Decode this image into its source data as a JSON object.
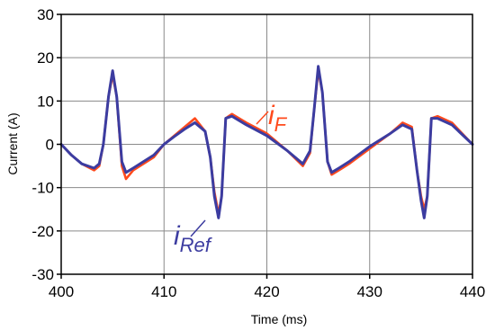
{
  "chart_data": {
    "type": "line",
    "title": "",
    "xlabel": "Time (ms)",
    "ylabel": "Current (A)",
    "xlim": [
      400,
      440
    ],
    "ylim": [
      -30,
      30
    ],
    "xticks": [
      "400",
      "410",
      "420",
      "430",
      "440"
    ],
    "yticks": [
      "30",
      "20",
      "10",
      "0",
      "-10",
      "-20",
      "-30"
    ],
    "grid": true,
    "legend": "none",
    "series": [
      {
        "name": "iF",
        "color": "#ff4a1c",
        "x": [
          400,
          401,
          402,
          403.2,
          403.7,
          404.1,
          404.6,
          405.0,
          405.4,
          405.9,
          406.3,
          407,
          408,
          409,
          410,
          411,
          412,
          413,
          414.0,
          414.5,
          414.9,
          415.3,
          415.6,
          416.0,
          416.6,
          418,
          420,
          422,
          423.5,
          424.2,
          424.6,
          425.0,
          425.4,
          425.9,
          426.3,
          427,
          428,
          430,
          432,
          433.2,
          434.1,
          434.6,
          435.0,
          435.3,
          435.6,
          436.0,
          436.6,
          438,
          440
        ],
        "y": [
          0,
          -2.5,
          -4.5,
          -6,
          -5,
          0,
          11,
          16,
          11,
          -5,
          -8,
          -6,
          -4.5,
          -3,
          0,
          2,
          4,
          6,
          3,
          -3,
          -11,
          -16,
          -12,
          6,
          7,
          5,
          2.5,
          -1.5,
          -5,
          -2,
          8,
          17,
          12,
          -4,
          -7,
          -6,
          -4.5,
          -1,
          2.5,
          5,
          4,
          -6,
          -12,
          -15,
          -12,
          6,
          6.5,
          5,
          0
        ]
      },
      {
        "name": "iRef",
        "color": "#3c3ca0",
        "x": [
          400,
          401,
          402,
          403.2,
          403.7,
          404.1,
          404.6,
          405.0,
          405.4,
          405.9,
          406.3,
          407,
          408,
          409,
          410,
          411,
          412,
          413,
          414.0,
          414.5,
          414.9,
          415.3,
          415.6,
          416.0,
          416.6,
          418,
          420,
          422,
          423.5,
          424.2,
          424.6,
          425.0,
          425.4,
          425.9,
          426.3,
          427,
          428,
          430,
          432,
          433.2,
          434.1,
          434.6,
          435.0,
          435.3,
          435.6,
          436.0,
          436.6,
          438,
          440
        ],
        "y": [
          0,
          -2.5,
          -4.5,
          -5.5,
          -4.5,
          0,
          11,
          17,
          11,
          -4,
          -6.5,
          -5.5,
          -4,
          -2.5,
          0,
          1.8,
          3.5,
          5,
          3,
          -3,
          -12,
          -17,
          -12,
          6,
          6.5,
          4.5,
          2,
          -1.5,
          -4.5,
          -1.5,
          8,
          18,
          12,
          -4,
          -6.5,
          -5.5,
          -4,
          -0.5,
          2.5,
          4.5,
          3.5,
          -6,
          -13,
          -17,
          -12,
          6,
          6,
          4.5,
          0
        ]
      }
    ],
    "annotations": [
      {
        "main": "i",
        "sub": "F",
        "color": "#ff4a1c"
      },
      {
        "main": "i",
        "sub": "Ref",
        "color": "#3c3ca0"
      }
    ]
  }
}
